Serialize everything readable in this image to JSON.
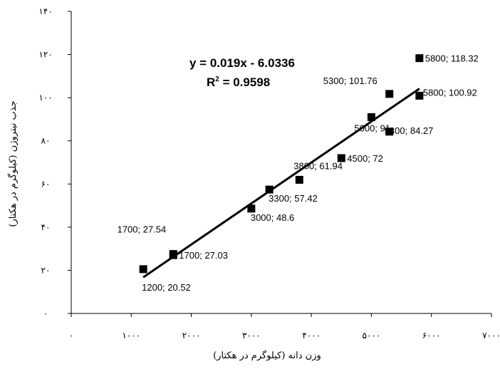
{
  "chart_data": {
    "type": "scatter",
    "xlabel": "وزن دانه (کیلوگرم در هکتار)",
    "ylabel": "جذب نیتروژن (کیلوگرم در هکتار)",
    "xlim": [
      0,
      7000
    ],
    "ylim": [
      0,
      140
    ],
    "x_ticks": [
      0,
      1000,
      2000,
      3000,
      4000,
      5000,
      6000,
      7000
    ],
    "x_tick_labels": [
      "۰",
      "۱۰۰۰",
      "۲۰۰۰",
      "۳۰۰۰",
      "۴۰۰۰",
      "۵۰۰۰",
      "۶۰۰۰",
      "۷۰۰۰"
    ],
    "y_ticks": [
      0,
      20,
      40,
      60,
      80,
      100,
      120,
      140
    ],
    "y_tick_labels": [
      "۰",
      "۲۰",
      "۴۰",
      "۶۰",
      "۸۰",
      "۱۰۰",
      "۱۲۰",
      "۱۴۰"
    ],
    "grid": false,
    "legend": false,
    "marker_color": "#000000",
    "points": [
      {
        "x": 1200,
        "y": 20.52,
        "label": "1200; 20.52"
      },
      {
        "x": 1700,
        "y": 27.03,
        "label": "1700; 27.03"
      },
      {
        "x": 1700,
        "y": 27.54,
        "label": "1700; 27.54"
      },
      {
        "x": 3000,
        "y": 48.6,
        "label": "3000; 48.6"
      },
      {
        "x": 3300,
        "y": 57.42,
        "label": "3300; 57.42"
      },
      {
        "x": 3800,
        "y": 61.94,
        "label": "3800; 61.94"
      },
      {
        "x": 4500,
        "y": 72,
        "label": "4500; 72"
      },
      {
        "x": 5000,
        "y": 91,
        "label": "5000; 91"
      },
      {
        "x": 5300,
        "y": 84.27,
        "label": "5300; 84.27"
      },
      {
        "x": 5300,
        "y": 101.76,
        "label": "5300; 101.76"
      },
      {
        "x": 5800,
        "y": 100.92,
        "label": "5800; 100.92"
      },
      {
        "x": 5800,
        "y": 118.32,
        "label": "5800; 118.32"
      }
    ],
    "trendline": {
      "type": "linear",
      "slope": 0.019,
      "intercept": -6.0336,
      "x_range": [
        1200,
        5800
      ],
      "equation_text": "y = 0.019x - 6.0336",
      "r2_prefix": "R",
      "r2_sup": "2",
      "r2_value": " = 0.9598"
    }
  }
}
